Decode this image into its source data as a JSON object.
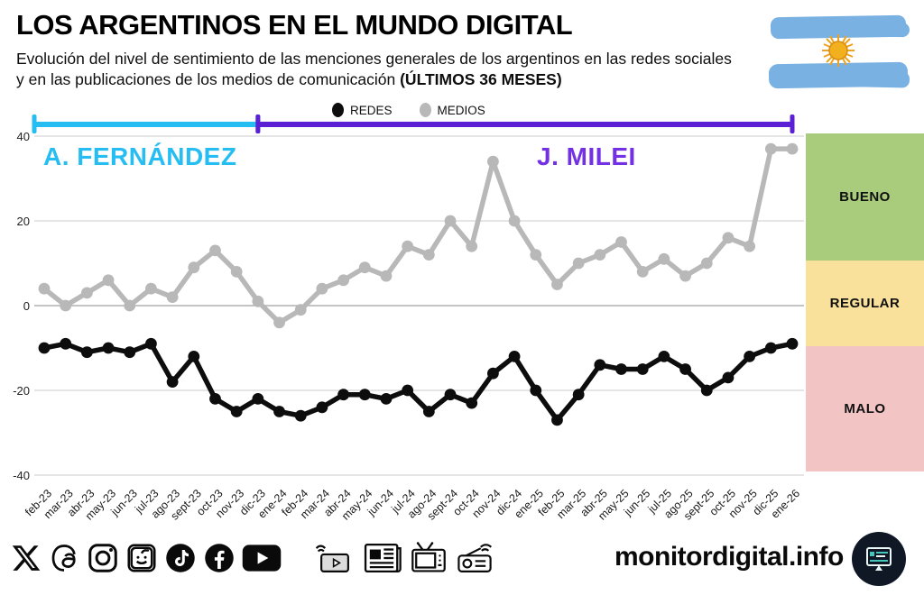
{
  "header": {
    "title": "LOS ARGENTINOS EN EL MUNDO DIGITAL",
    "subtitle_regular": "Evolución del nivel de sentimiento de las menciones generales de los argentinos en las redes sociales y en las publicaciones de los medios de comunicación ",
    "subtitle_bold": "(ÚLTIMOS 36 MESES)"
  },
  "legend": {
    "redes": "REDES",
    "medios": "MEDIOS"
  },
  "periods": [
    {
      "label": "A. FERNÁNDEZ",
      "color": "#25bdf2",
      "text_color": "#25bdf2",
      "from_month": 0,
      "to_month": 10
    },
    {
      "label": "J. MILEI",
      "color": "#5b20d4",
      "text_color": "#7331e3",
      "from_month": 10,
      "to_month": 35
    }
  ],
  "zones": [
    {
      "label": "BUENO",
      "color": "#a8cb7c",
      "range": [
        10,
        40
      ]
    },
    {
      "label": "REGULAR",
      "color": "#f9e19c",
      "range": [
        -10,
        10
      ]
    },
    {
      "label": "MALO",
      "color": "#f2c5c4",
      "range": [
        -40,
        -10
      ]
    }
  ],
  "chart_data": {
    "type": "line",
    "title": "Evolución del nivel de sentimiento (últimos 36 meses)",
    "categories": [
      "feb-23",
      "mar-23",
      "abr-23",
      "may-23",
      "jun-23",
      "jul-23",
      "ago-23",
      "sept-23",
      "oct-23",
      "nov-23",
      "dic-23",
      "ene-24",
      "feb-24",
      "mar-24",
      "abr-24",
      "may-24",
      "jun-24",
      "jul-24",
      "ago-24",
      "sept-24",
      "oct-24",
      "nov-24",
      "dic-24",
      "ene-25",
      "feb-25",
      "mar-25",
      "abr-25",
      "may-25",
      "jun-25",
      "jul-25",
      "ago-25",
      "sept-25",
      "oct-25",
      "nov-25",
      "dic-25",
      "ene-26"
    ],
    "series": [
      {
        "name": "REDES",
        "color": "#0d0d0d",
        "values": [
          -10,
          -9,
          -11,
          -10,
          -11,
          -9,
          -18,
          -12,
          -22,
          -25,
          -22,
          -25,
          -26,
          -24,
          -21,
          -21,
          -22,
          -20,
          -25,
          -21,
          -23,
          -16,
          -12,
          -20,
          -27,
          -21,
          -14,
          -15,
          -15,
          -12,
          -15,
          -20,
          -17,
          -12,
          -10,
          -9
        ]
      },
      {
        "name": "MEDIOS",
        "color": "#b8b8b8",
        "values": [
          4,
          0,
          3,
          6,
          0,
          4,
          2,
          9,
          13,
          8,
          1,
          -4,
          -1,
          4,
          6,
          9,
          7,
          14,
          12,
          20,
          14,
          34,
          20,
          12,
          5,
          10,
          12,
          15,
          8,
          11,
          7,
          10,
          16,
          14,
          37,
          37
        ]
      }
    ],
    "ylim": [
      -40,
      40
    ],
    "yticks": [
      40,
      20,
      0,
      -20,
      -40
    ],
    "grid": true,
    "legend_position": "top-center"
  },
  "footer": {
    "site": "monitordigital.info",
    "social_icons": [
      "x",
      "threads",
      "instagram",
      "reddit",
      "tiktok",
      "facebook",
      "youtube"
    ],
    "media_icons": [
      "streaming",
      "newspaper",
      "tv",
      "radio"
    ]
  }
}
